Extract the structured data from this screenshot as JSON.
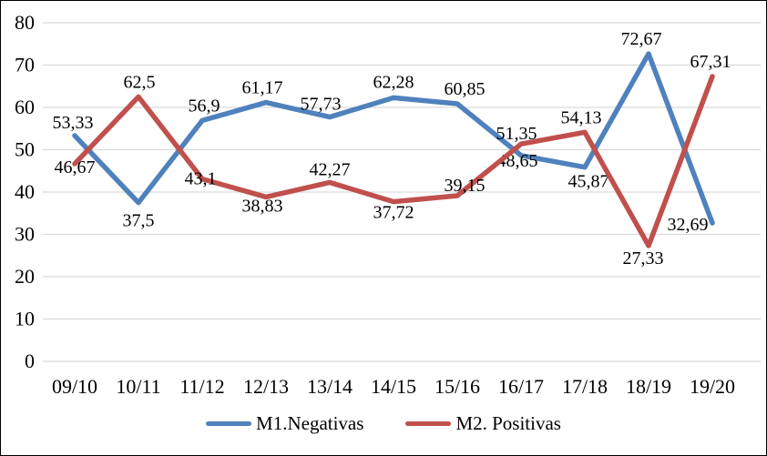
{
  "chart_data": {
    "type": "line",
    "categories": [
      "09/10",
      "10/11",
      "11/12",
      "12/13",
      "13/14",
      "14/15",
      "15/16",
      "16/17",
      "17/18",
      "18/19",
      "19/20"
    ],
    "series": [
      {
        "name": "M1.Negativas",
        "color": "#4F81BD",
        "values": [
          53.33,
          37.5,
          56.9,
          61.17,
          57.73,
          62.28,
          60.85,
          48.65,
          45.87,
          72.67,
          32.69
        ],
        "labels": [
          "53,33",
          "37,5",
          "56,9",
          "61,17",
          "57,73",
          "62,28",
          "60,85",
          "48,65",
          "45,87",
          "72,67",
          "32,69"
        ]
      },
      {
        "name": "M2. Positivas",
        "color": "#C0504D",
        "values": [
          46.67,
          62.5,
          43.1,
          38.83,
          42.27,
          37.72,
          39.15,
          51.35,
          54.13,
          27.33,
          67.31
        ],
        "labels": [
          "46,67",
          "62,5",
          "43,1",
          "38,83",
          "42,27",
          "37,72",
          "39,15",
          "51,35",
          "54,13",
          "27,33",
          "67,31"
        ]
      }
    ],
    "title": "",
    "xlabel": "",
    "ylabel": "",
    "ylim": [
      0,
      80
    ],
    "ytick_step": 10,
    "yticks": [
      "0",
      "10",
      "20",
      "30",
      "40",
      "50",
      "60",
      "70",
      "80"
    ],
    "grid": "horizontal",
    "legend_position": "bottom"
  },
  "colors": {
    "grid": "#D9D9D9",
    "text": "#000000",
    "background": "#FFFFFF",
    "border": "#000000"
  }
}
